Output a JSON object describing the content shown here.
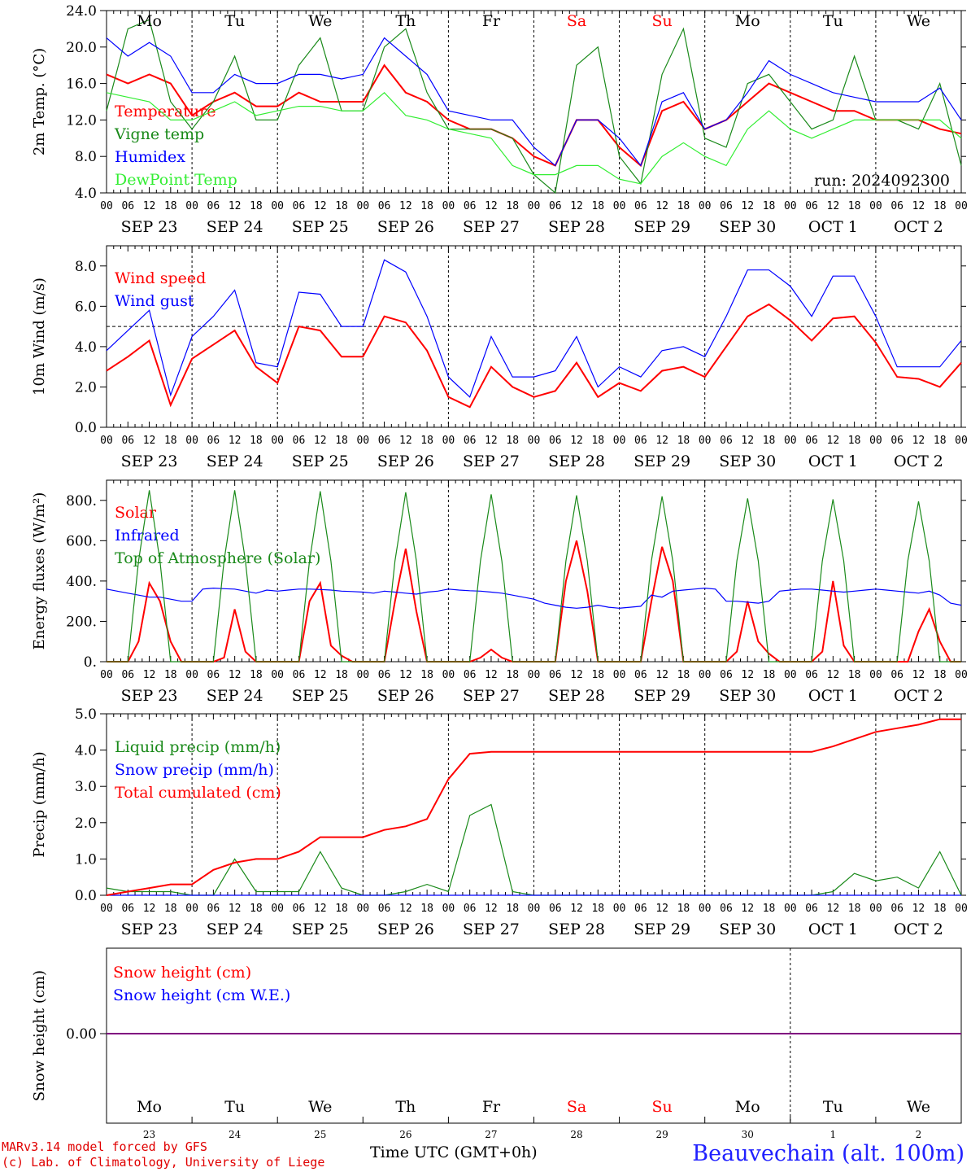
{
  "days": {
    "weekday": [
      "Mo",
      "Tu",
      "We",
      "Th",
      "Fr",
      "Sa",
      "Su",
      "Mo",
      "Tu",
      "We"
    ],
    "weekend_color": "#ff0000",
    "dates": [
      "SEP 23",
      "SEP 24",
      "SEP 25",
      "SEP 26",
      "SEP 27",
      "SEP 28",
      "SEP 29",
      "SEP 30",
      "OCT  1",
      "OCT  2"
    ],
    "day_numbers": [
      "23",
      "24",
      "25",
      "26",
      "27",
      "28",
      "29",
      "30",
      "1",
      "2"
    ],
    "hour_ticks": [
      "00",
      "06",
      "12",
      "18"
    ],
    "end_tick": "00"
  },
  "colors": {
    "red": "#ff0000",
    "green": "#1a8a1a",
    "blue": "#0000ff",
    "light_green": "#33ee33",
    "purple": "#800080"
  },
  "chart_data": [
    {
      "type": "line",
      "ylabel": "2m Temp. (°C)",
      "ylim": [
        4.0,
        24.0
      ],
      "yticks": [
        "4.0",
        "8.0",
        "12.0",
        "16.0",
        "20.0",
        "24.0"
      ],
      "annotation": "run: 2024092300",
      "x_hours": [
        0,
        6,
        12,
        18,
        24,
        30,
        36,
        42,
        48,
        54,
        60,
        66,
        72,
        78,
        84,
        90,
        96,
        102,
        108,
        114,
        120,
        126,
        132,
        138,
        144,
        150,
        156,
        162,
        168,
        174,
        180,
        186,
        192,
        198,
        204,
        210,
        216,
        222,
        228,
        234,
        240
      ],
      "series": [
        {
          "name": "Temperature",
          "color": "red",
          "values": [
            17,
            16,
            17,
            16,
            12.5,
            14,
            15,
            13.5,
            13.5,
            15,
            14,
            14,
            14,
            18,
            15,
            14,
            12,
            11,
            11,
            10,
            8,
            7,
            12,
            12,
            9,
            7,
            13,
            14,
            11,
            12,
            14,
            16,
            15,
            14,
            13,
            13,
            12,
            12,
            12,
            11,
            10.5
          ]
        },
        {
          "name": "Vigne temp",
          "color": "green",
          "values": [
            13,
            22,
            23,
            14,
            11,
            14,
            19,
            12,
            12,
            18,
            21,
            13,
            13,
            20,
            22,
            15,
            11,
            11,
            11,
            10,
            6,
            4,
            18,
            20,
            8,
            5,
            17,
            22,
            10,
            9,
            16,
            17,
            14,
            11,
            12,
            19,
            12,
            12,
            11,
            16,
            7
          ]
        },
        {
          "name": "Humidex",
          "color": "blue",
          "values": [
            21,
            19,
            20.5,
            19,
            15,
            15,
            17,
            16,
            16,
            17,
            17,
            16.5,
            17,
            21,
            19,
            17,
            13,
            12.5,
            12,
            12,
            9,
            7,
            12,
            12,
            10,
            7,
            14,
            15,
            11,
            12,
            15,
            18.5,
            17,
            16,
            15,
            14.5,
            14,
            14,
            14,
            15.5,
            12
          ]
        },
        {
          "name": "DewPoint Temp",
          "color": "light_green",
          "values": [
            15,
            14.5,
            14,
            12,
            12,
            13,
            14,
            12.5,
            13,
            13.5,
            13.5,
            13,
            13,
            15,
            12.5,
            12,
            11,
            10.5,
            10,
            7,
            6,
            6,
            7,
            7,
            5.5,
            5,
            8,
            9.5,
            8,
            7,
            11,
            13,
            11,
            10,
            11,
            12,
            12,
            12,
            12,
            12,
            10
          ]
        }
      ]
    },
    {
      "type": "line",
      "ylabel": "10m Wind (m/s)",
      "ylim": [
        0.0,
        9.0
      ],
      "yticks": [
        "0.0",
        "2.0",
        "4.0",
        "6.0",
        "8.0"
      ],
      "reference_line": 5.0,
      "x_hours": [
        0,
        6,
        12,
        18,
        24,
        30,
        36,
        42,
        48,
        54,
        60,
        66,
        72,
        78,
        84,
        90,
        96,
        102,
        108,
        114,
        120,
        126,
        132,
        138,
        144,
        150,
        156,
        162,
        168,
        174,
        180,
        186,
        192,
        198,
        204,
        210,
        216,
        222,
        228,
        234,
        240
      ],
      "series": [
        {
          "name": "Wind speed",
          "color": "red",
          "values": [
            2.8,
            3.5,
            4.3,
            1.1,
            3.4,
            4.1,
            4.8,
            3,
            2.2,
            5.0,
            4.8,
            3.5,
            3.5,
            5.5,
            5.2,
            3.8,
            1.5,
            1.0,
            3.0,
            2.0,
            1.5,
            1.8,
            3.2,
            1.5,
            2.2,
            1.8,
            2.8,
            3.0,
            2.5,
            4.0,
            5.5,
            6.1,
            5.3,
            4.3,
            5.4,
            5.5,
            4.2,
            2.5,
            2.4,
            2.0,
            3.2
          ]
        },
        {
          "name": "Wind gust",
          "color": "blue",
          "values": [
            3.8,
            4.8,
            5.8,
            1.6,
            4.5,
            5.5,
            6.8,
            3.2,
            3.0,
            6.7,
            6.6,
            5.0,
            5.0,
            8.3,
            7.7,
            5.5,
            2.5,
            1.5,
            4.5,
            2.5,
            2.5,
            2.8,
            4.5,
            2.0,
            3.0,
            2.5,
            3.8,
            4.0,
            3.5,
            5.5,
            7.8,
            7.8,
            7.0,
            5.5,
            7.5,
            7.5,
            5.5,
            3.0,
            3.0,
            3.0,
            4.3
          ]
        }
      ]
    },
    {
      "type": "line",
      "ylabel": "Energy fluxes (W/m²)",
      "ylim": [
        0,
        900
      ],
      "yticks": [
        "0.",
        "200.",
        "400.",
        "600.",
        "800."
      ],
      "x_hours": [
        0,
        3,
        6,
        9,
        12,
        15,
        18,
        21,
        24,
        27,
        30,
        33,
        36,
        39,
        42,
        45,
        48,
        51,
        54,
        57,
        60,
        63,
        66,
        69,
        72,
        75,
        78,
        81,
        84,
        87,
        90,
        93,
        96,
        99,
        102,
        105,
        108,
        111,
        114,
        117,
        120,
        123,
        126,
        129,
        132,
        135,
        138,
        141,
        144,
        147,
        150,
        153,
        156,
        159,
        162,
        165,
        168,
        171,
        174,
        177,
        180,
        183,
        186,
        189,
        192,
        195,
        198,
        201,
        204,
        207,
        210,
        213,
        216,
        219,
        222,
        225,
        228,
        231,
        234,
        237,
        240
      ],
      "series": [
        {
          "name": "Solar",
          "color": "red",
          "values": [
            0,
            0,
            0,
            100,
            390,
            300,
            100,
            0,
            0,
            0,
            0,
            20,
            260,
            50,
            0,
            0,
            0,
            0,
            0,
            300,
            390,
            80,
            30,
            0,
            0,
            0,
            0,
            300,
            560,
            250,
            0,
            0,
            0,
            0,
            0,
            20,
            60,
            20,
            0,
            0,
            0,
            0,
            0,
            400,
            600,
            350,
            0,
            0,
            0,
            0,
            0,
            300,
            570,
            400,
            0,
            0,
            0,
            0,
            0,
            50,
            300,
            100,
            40,
            0,
            0,
            0,
            0,
            50,
            400,
            80,
            0,
            0,
            0,
            0,
            0,
            0,
            150,
            260,
            100,
            0,
            0
          ]
        },
        {
          "name": "Infrared",
          "color": "blue",
          "values": [
            360,
            350,
            340,
            330,
            320,
            320,
            310,
            300,
            300,
            360,
            365,
            362,
            360,
            350,
            340,
            355,
            350,
            355,
            360,
            360,
            358,
            355,
            350,
            348,
            345,
            340,
            350,
            345,
            340,
            335,
            345,
            350,
            360,
            355,
            352,
            350,
            345,
            340,
            330,
            320,
            310,
            290,
            280,
            270,
            265,
            270,
            280,
            270,
            265,
            270,
            275,
            330,
            320,
            350,
            355,
            360,
            365,
            360,
            300,
            300,
            295,
            290,
            300,
            350,
            355,
            360,
            360,
            355,
            350,
            345,
            350,
            355,
            360,
            355,
            350,
            345,
            340,
            350,
            330,
            290,
            280
          ]
        },
        {
          "name": "Top of Atmosphere (Solar)",
          "color": "green",
          "values": [
            0,
            0,
            0,
            500,
            850,
            500,
            0,
            0,
            0,
            0,
            0,
            500,
            850,
            500,
            0,
            0,
            0,
            0,
            0,
            500,
            845,
            500,
            0,
            0,
            0,
            0,
            0,
            500,
            840,
            500,
            0,
            0,
            0,
            0,
            0,
            500,
            830,
            500,
            0,
            0,
            0,
            0,
            0,
            500,
            825,
            500,
            0,
            0,
            0,
            0,
            0,
            500,
            820,
            500,
            0,
            0,
            0,
            0,
            0,
            500,
            810,
            500,
            0,
            0,
            0,
            0,
            0,
            500,
            805,
            500,
            0,
            0,
            0,
            0,
            0,
            500,
            795,
            500,
            0,
            0,
            0
          ]
        }
      ]
    },
    {
      "type": "line",
      "ylabel": "Precip (mm/h)",
      "ylim": [
        0.0,
        5.0
      ],
      "yticks": [
        "0.0",
        "1.0",
        "2.0",
        "3.0",
        "4.0",
        "5.0"
      ],
      "x_hours": [
        0,
        6,
        12,
        18,
        24,
        30,
        36,
        42,
        48,
        54,
        60,
        66,
        72,
        78,
        84,
        90,
        96,
        102,
        108,
        114,
        120,
        126,
        132,
        138,
        144,
        150,
        156,
        162,
        168,
        174,
        180,
        186,
        192,
        198,
        204,
        210,
        216,
        222,
        228,
        234,
        240
      ],
      "series": [
        {
          "name": "Liquid precip (mm/h)",
          "color": "green",
          "values": [
            0.2,
            0.1,
            0.1,
            0.1,
            0,
            0,
            1.0,
            0.1,
            0.1,
            0.1,
            1.2,
            0.2,
            0,
            0,
            0.1,
            0.3,
            0.1,
            2.2,
            2.5,
            0.1,
            0,
            0,
            0,
            0,
            0,
            0,
            0,
            0,
            0,
            0,
            0,
            0,
            0,
            0,
            0.1,
            0.6,
            0.4,
            0.5,
            0.2,
            1.2,
            0
          ]
        },
        {
          "name": "Snow precip (mm/h)",
          "color": "blue",
          "values": [
            0,
            0,
            0,
            0,
            0,
            0,
            0,
            0,
            0,
            0,
            0,
            0,
            0,
            0,
            0,
            0,
            0,
            0,
            0,
            0,
            0,
            0,
            0,
            0,
            0,
            0,
            0,
            0,
            0,
            0,
            0,
            0,
            0,
            0,
            0,
            0,
            0,
            0,
            0,
            0,
            0
          ]
        },
        {
          "name": "Total cumulated (cm)",
          "color": "red",
          "values": [
            0,
            0.1,
            0.2,
            0.3,
            0.3,
            0.7,
            0.9,
            1.0,
            1.0,
            1.2,
            1.6,
            1.6,
            1.6,
            1.8,
            1.9,
            2.1,
            3.2,
            3.9,
            3.95,
            3.95,
            3.95,
            3.95,
            3.95,
            3.95,
            3.95,
            3.95,
            3.95,
            3.95,
            3.95,
            3.95,
            3.95,
            3.95,
            3.95,
            3.95,
            4.1,
            4.3,
            4.5,
            4.6,
            4.7,
            4.85,
            4.85
          ]
        }
      ]
    },
    {
      "type": "line",
      "ylabel": "Snow height (cm)",
      "yticks": [
        "0.00"
      ],
      "series": [
        {
          "name": "Snow height (cm)",
          "color": "red",
          "values": [
            0,
            0
          ]
        },
        {
          "name": "Snow height (cm W.E.)",
          "color": "blue",
          "values": [
            0,
            0
          ]
        }
      ]
    }
  ],
  "footer": {
    "model_line1": "MARv3.14 model forced by GFS",
    "model_line2": "(c) Lab. of Climatology, University of Liege",
    "time_label": "Time UTC (GMT+0h)",
    "station": "Beauvechain (alt. 100m)"
  }
}
